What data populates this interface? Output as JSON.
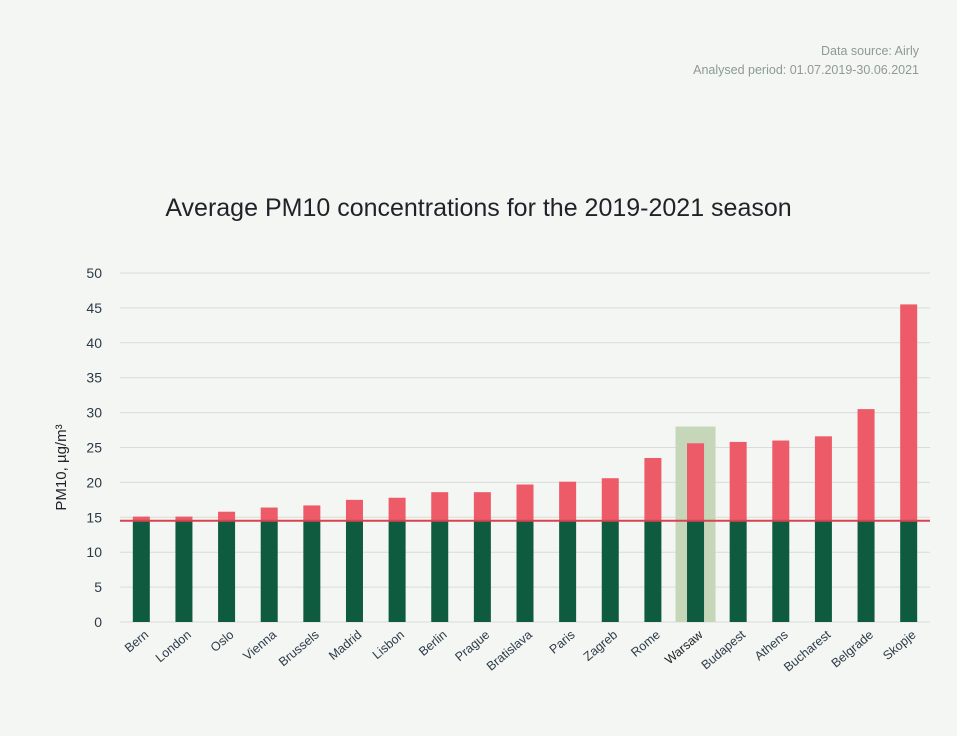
{
  "source": {
    "line1": "Data source: Airly",
    "line2": "Analysed period: 01.07.2019-30.06.2021"
  },
  "colors": {
    "background": "#f4f6f3",
    "base_bar": "#0f5b3f",
    "excess_bar": "#ec5b67",
    "limit_line": "#d94350",
    "highlight_band": "#c5d6b9",
    "grid": "#d9dcd9",
    "axis_text": "#2c3a48"
  },
  "chart_data": {
    "type": "bar",
    "title": "Average PM10 concentrations for the 2019-2021 season",
    "ylabel": "PM10, µg/m³",
    "xlabel": "",
    "ylim": [
      0,
      50
    ],
    "yticks": [
      0,
      5,
      10,
      15,
      20,
      25,
      30,
      35,
      40,
      45,
      50
    ],
    "grid": true,
    "reference_line": 14.5,
    "highlighted_category": "Warsaw",
    "categories": [
      "Bern",
      "London",
      "Oslo",
      "Vienna",
      "Brussels",
      "Madrid",
      "Lisbon",
      "Berlin",
      "Prague",
      "Bratislava",
      "Paris",
      "Zagreb",
      "Rome",
      "Warsaw",
      "Budapest",
      "Athens",
      "Bucharest",
      "Belgrade",
      "Skopje"
    ],
    "values": [
      15.1,
      15.1,
      15.8,
      16.4,
      16.7,
      17.5,
      17.8,
      18.6,
      18.6,
      19.7,
      20.1,
      20.6,
      23.5,
      25.6,
      25.8,
      26.0,
      26.6,
      30.5,
      45.5
    ]
  }
}
